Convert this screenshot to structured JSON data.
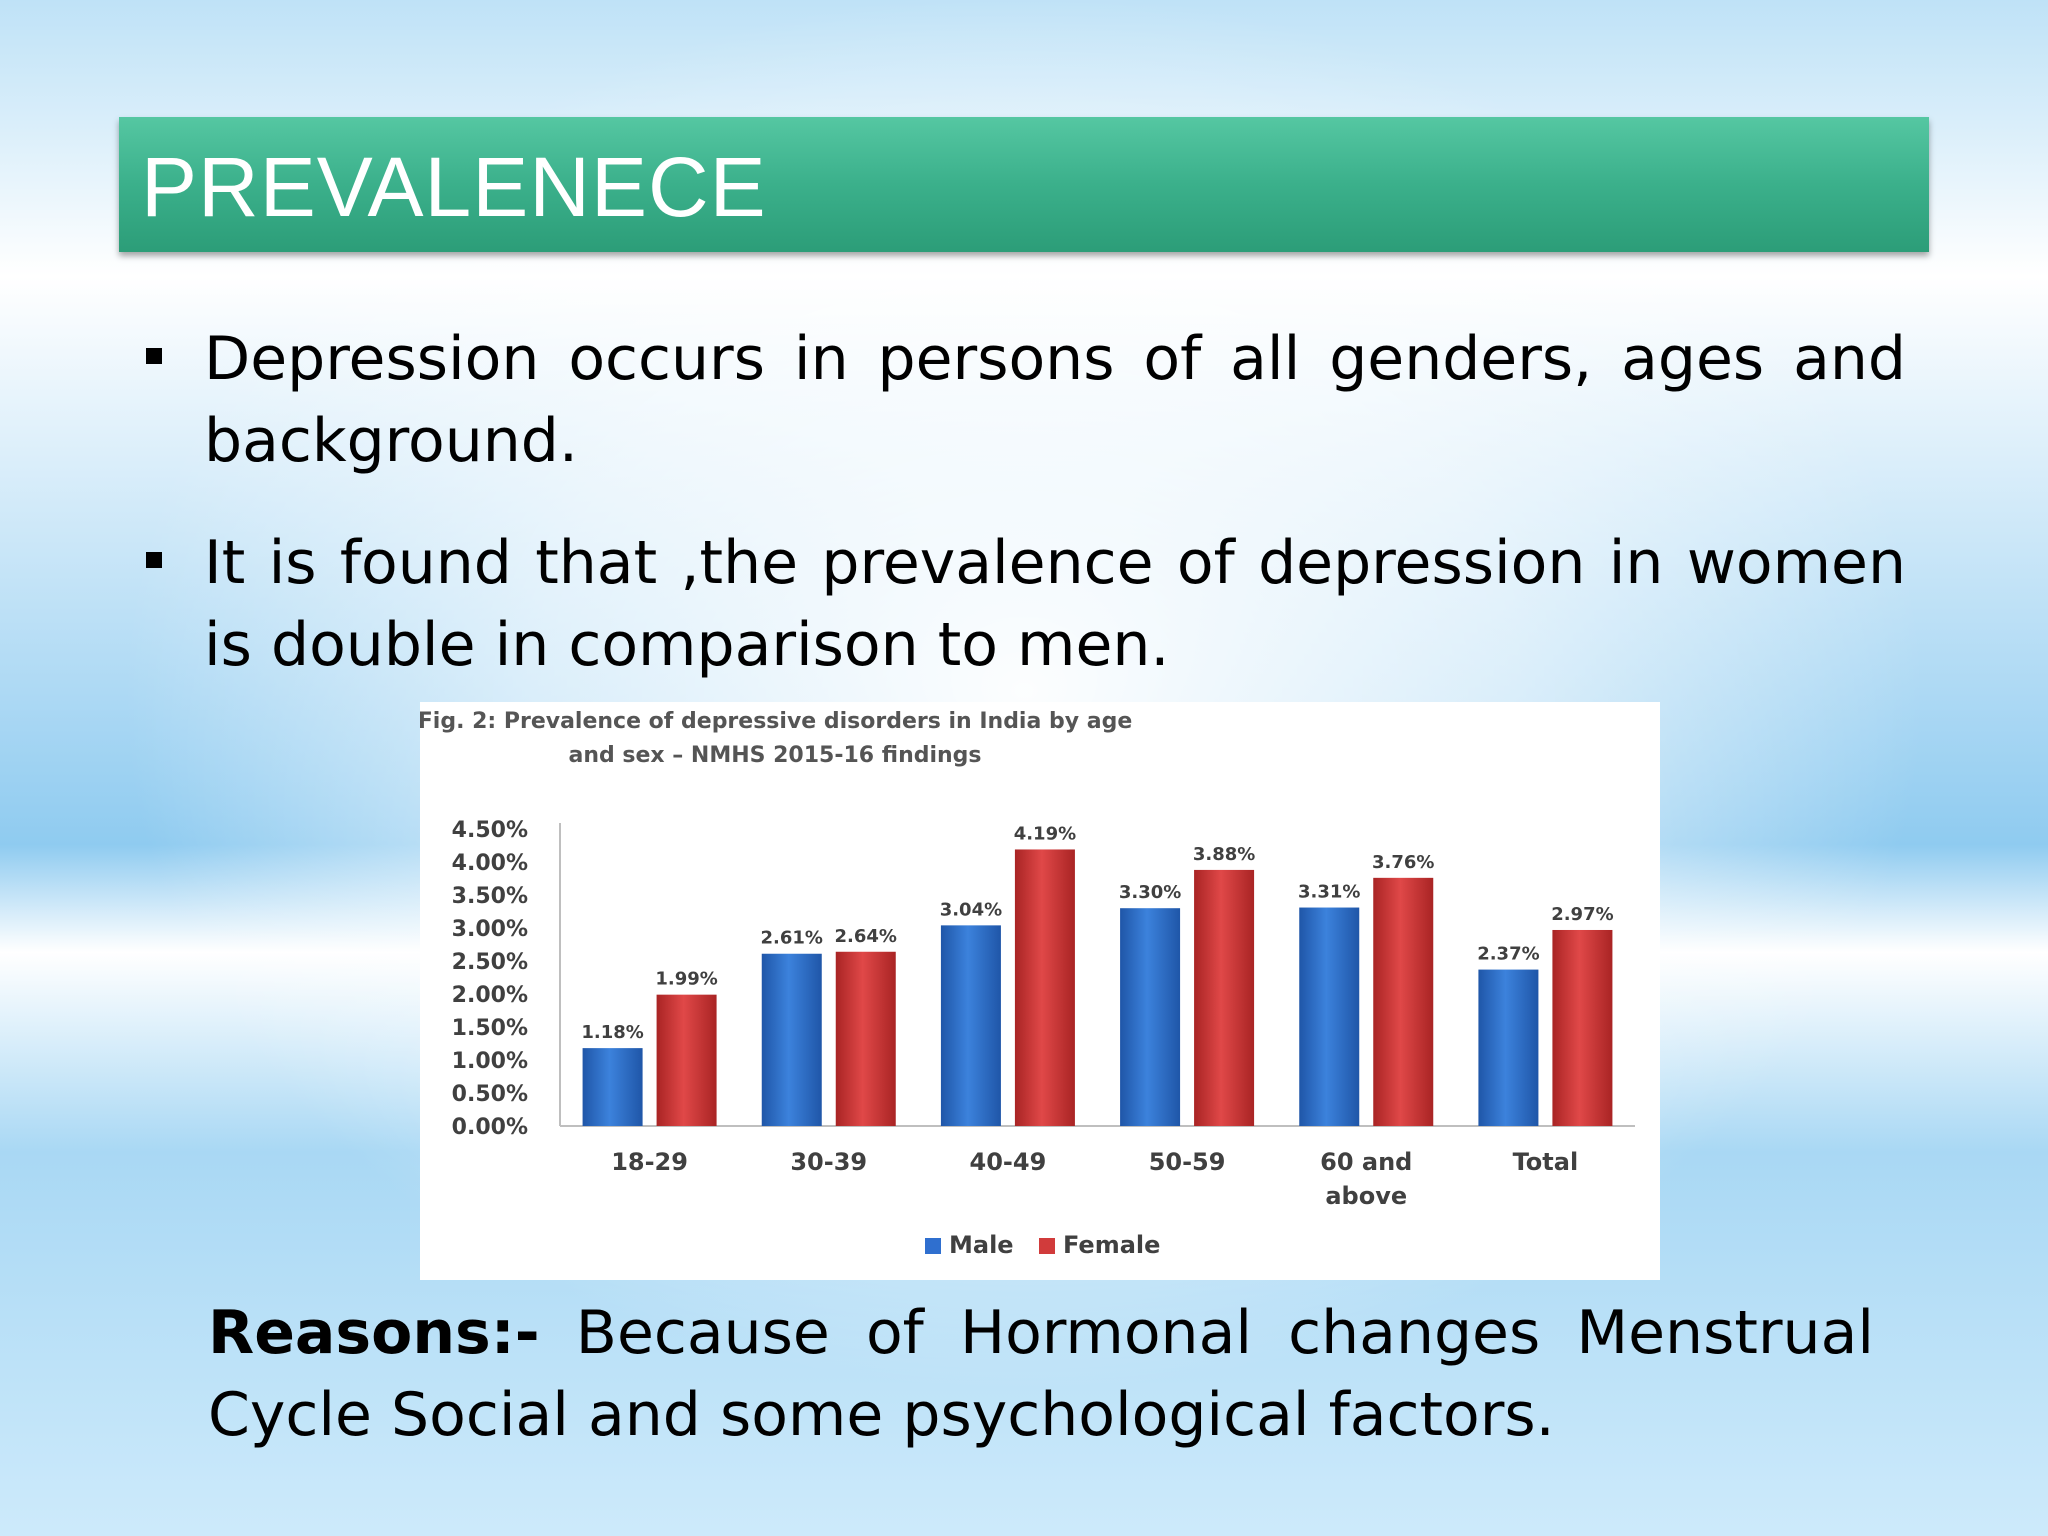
{
  "slide": {
    "title": "PREVALENECE",
    "bullets": [
      "Depression occurs in persons of all genders, ages and background.",
      "It is found that ,the prevalence of depression in women is double in comparison to men."
    ],
    "reasons_label": "Reasons:-",
    "reasons_text": " Because of Hormonal changes Menstrual Cycle Social and some psychological factors."
  },
  "chart_data": {
    "type": "bar",
    "title_lines": [
      "Fig. 2: Prevalence of depressive disorders in India by age",
      "and sex – NMHS 2015-16 findings"
    ],
    "categories": [
      [
        "18-29"
      ],
      [
        "30-39"
      ],
      [
        "40-49"
      ],
      [
        "50-59"
      ],
      [
        "60 and",
        "above"
      ],
      [
        "Total"
      ]
    ],
    "series": [
      {
        "name": "Male",
        "color": "#2f6fcf",
        "values": [
          1.18,
          2.61,
          3.04,
          3.3,
          3.31,
          2.37
        ],
        "labels": [
          "1.18%",
          "2.61%",
          "3.04%",
          "3.30%",
          "3.31%",
          "2.37%"
        ]
      },
      {
        "name": "Female",
        "color": "#d13b3b",
        "values": [
          1.99,
          2.64,
          4.19,
          3.88,
          3.76,
          2.97
        ],
        "labels": [
          "1.99%",
          "2.64%",
          "4.19%",
          "3.88%",
          "3.76%",
          "2.97%"
        ]
      }
    ],
    "y_ticks": [
      "0.00%",
      "0.50%",
      "1.00%",
      "1.50%",
      "2.00%",
      "2.50%",
      "3.00%",
      "3.50%",
      "4.00%",
      "4.50%"
    ],
    "ylim": [
      0,
      4.5
    ],
    "grid": false,
    "legend_position": "bottom"
  }
}
